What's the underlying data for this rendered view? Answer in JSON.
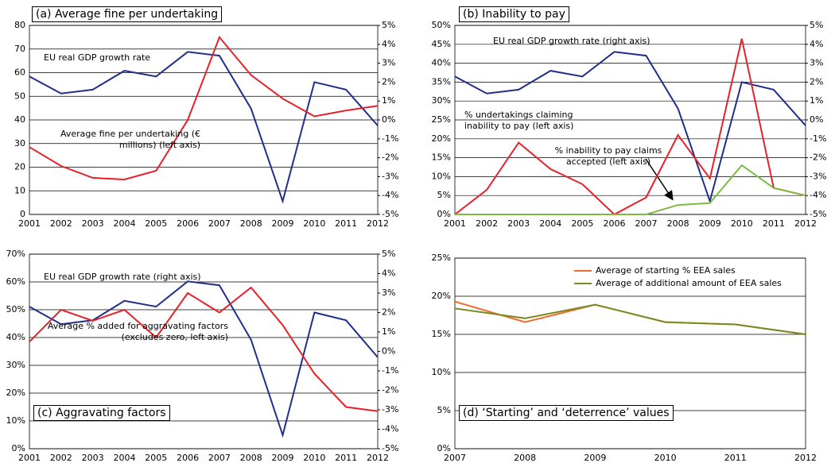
{
  "chart_data": [
    {
      "type": "line",
      "title": "(a) Average fine per undertaking",
      "categories": [
        "2001",
        "2002",
        "2003",
        "2004",
        "2005",
        "2006",
        "2007",
        "2008",
        "2009",
        "2010",
        "2011",
        "2012"
      ],
      "ylim": [
        0,
        80
      ],
      "yticks": [
        0,
        10,
        20,
        30,
        40,
        50,
        60,
        70,
        80
      ],
      "y2lim": [
        -5,
        5
      ],
      "y2ticks": [
        {
          "value": -5,
          "label": "-5%"
        },
        {
          "value": -4,
          "label": "-4%"
        },
        {
          "value": -3,
          "label": "-3%"
        },
        {
          "value": -2,
          "label": "-2%"
        },
        {
          "value": -1,
          "label": "-1%"
        },
        {
          "value": 0,
          "label": "0%"
        },
        {
          "value": 1,
          "label": "1%"
        },
        {
          "value": 2,
          "label": "2%"
        },
        {
          "value": 3,
          "label": "3%"
        },
        {
          "value": 4,
          "label": "4%"
        },
        {
          "value": 5,
          "label": "5%"
        }
      ],
      "grid": true,
      "legend": false,
      "series": [
        {
          "name": "EU real GDP growth rate",
          "color": "#1f2f8a",
          "axis": "y2",
          "values": [
            2.3,
            1.4,
            1.6,
            2.6,
            2.3,
            3.6,
            3.4,
            0.6,
            -4.3,
            2.0,
            1.6,
            -0.3
          ]
        },
        {
          "name": "Average fine per undertaking (€ millions) (left axis)",
          "color": "#e8202a",
          "values": [
            28.5,
            20.5,
            15.5,
            14.8,
            18.5,
            40,
            75,
            59,
            49,
            41.5,
            44,
            46
          ]
        }
      ]
    },
    {
      "type": "line",
      "title": "(b) Inability to pay",
      "categories": [
        "2001",
        "2002",
        "2003",
        "2004",
        "2005",
        "2006",
        "2007",
        "2008",
        "2009",
        "2010",
        "2011",
        "2012"
      ],
      "ylim": [
        0,
        50
      ],
      "yticks": [
        {
          "value": 0,
          "label": "0%"
        },
        {
          "value": 5,
          "label": "5%"
        },
        {
          "value": 10,
          "label": "10%"
        },
        {
          "value": 15,
          "label": "15%"
        },
        {
          "value": 20,
          "label": "20%"
        },
        {
          "value": 25,
          "label": "25%"
        },
        {
          "value": 30,
          "label": "30%"
        },
        {
          "value": 35,
          "label": "35%"
        },
        {
          "value": 40,
          "label": "40%"
        },
        {
          "value": 45,
          "label": "45%"
        },
        {
          "value": 50,
          "label": "50%"
        }
      ],
      "y2lim": [
        -5,
        5
      ],
      "y2ticks": [
        {
          "value": -5,
          "label": "-5%"
        },
        {
          "value": -4,
          "label": "-4%"
        },
        {
          "value": -3,
          "label": "-3%"
        },
        {
          "value": -2,
          "label": "-2%"
        },
        {
          "value": -1,
          "label": "-1%"
        },
        {
          "value": 0,
          "label": "0%"
        },
        {
          "value": 1,
          "label": "1%"
        },
        {
          "value": 2,
          "label": "2%"
        },
        {
          "value": 3,
          "label": "3%"
        },
        {
          "value": 4,
          "label": "4%"
        },
        {
          "value": 5,
          "label": "5%"
        }
      ],
      "grid": true,
      "legend": false,
      "series": [
        {
          "name": "EU real GDP growth rate (right axis)",
          "color": "#1f2f8a",
          "axis": "y2",
          "values": [
            2.3,
            1.4,
            1.6,
            2.6,
            2.3,
            3.6,
            3.4,
            0.6,
            -4.3,
            2.0,
            1.6,
            -0.3
          ]
        },
        {
          "name": "% undertakings claiming inability to pay (left axis)",
          "color": "#e8202a",
          "values": [
            0,
            6.5,
            19,
            12,
            8,
            0,
            4.5,
            21,
            9.5,
            46.5,
            7,
            5
          ]
        },
        {
          "name": "% inability to pay claims accepted (left axis)",
          "color": "#7dbb42",
          "values": [
            0,
            0,
            0,
            0,
            0,
            0,
            0,
            2.5,
            3,
            13,
            7,
            5
          ]
        }
      ]
    },
    {
      "type": "line",
      "title": "(c) Aggravating factors",
      "categories": [
        "2001",
        "2002",
        "2003",
        "2004",
        "2005",
        "2006",
        "2007",
        "2008",
        "2009",
        "2010",
        "2011",
        "2012"
      ],
      "ylim": [
        0,
        70
      ],
      "yticks": [
        {
          "value": 0,
          "label": "0%"
        },
        {
          "value": 10,
          "label": "10%"
        },
        {
          "value": 20,
          "label": "20%"
        },
        {
          "value": 30,
          "label": "30%"
        },
        {
          "value": 40,
          "label": "40%"
        },
        {
          "value": 50,
          "label": "50%"
        },
        {
          "value": 60,
          "label": "60%"
        },
        {
          "value": 70,
          "label": "70%"
        }
      ],
      "y2lim": [
        -5,
        5
      ],
      "y2ticks": [
        {
          "value": -5,
          "label": "-5%"
        },
        {
          "value": -4,
          "label": "-4%"
        },
        {
          "value": -3,
          "label": "-3%"
        },
        {
          "value": -2,
          "label": "-2%"
        },
        {
          "value": -1,
          "label": "-1%"
        },
        {
          "value": 0,
          "label": "0%"
        },
        {
          "value": 1,
          "label": "1%"
        },
        {
          "value": 2,
          "label": "2%"
        },
        {
          "value": 3,
          "label": "3%"
        },
        {
          "value": 4,
          "label": "4%"
        },
        {
          "value": 5,
          "label": "5%"
        }
      ],
      "grid": true,
      "legend": false,
      "series": [
        {
          "name": "EU real GDP growth rate (right axis)",
          "color": "#1f2f8a",
          "axis": "y2",
          "values": [
            2.3,
            1.4,
            1.6,
            2.6,
            2.3,
            3.6,
            3.4,
            0.6,
            -4.3,
            2.0,
            1.6,
            -0.3
          ]
        },
        {
          "name": "Average % added for aggravating factors (excludes zero, left axis)",
          "color": "#e8202a",
          "values": [
            38.5,
            50,
            46,
            50,
            40,
            56,
            49,
            58,
            44.5,
            27,
            15,
            13.5
          ]
        }
      ]
    },
    {
      "type": "line",
      "title": "(d) ‘Starting’ and ‘deterrence’ values",
      "categories": [
        "2007",
        "2008",
        "2009",
        "2010",
        "2011",
        "2012"
      ],
      "ylim": [
        0,
        25
      ],
      "yticks": [
        {
          "value": 0,
          "label": "0%"
        },
        {
          "value": 5,
          "label": "5%"
        },
        {
          "value": 10,
          "label": "10%"
        },
        {
          "value": 15,
          "label": "15%"
        },
        {
          "value": 20,
          "label": "20%"
        },
        {
          "value": 25,
          "label": "25%"
        }
      ],
      "grid": true,
      "legend": true,
      "series": [
        {
          "name": "Average of starting % EEA sales",
          "color": "#f26a2a",
          "values": [
            19.3,
            16.6,
            18.9,
            16.6,
            16.3,
            15
          ]
        },
        {
          "name": "Average of additional amount of EEA sales",
          "color": "#7a8a22",
          "values": [
            18.4,
            17.1,
            18.9,
            16.6,
            16.3,
            15
          ]
        }
      ]
    }
  ]
}
